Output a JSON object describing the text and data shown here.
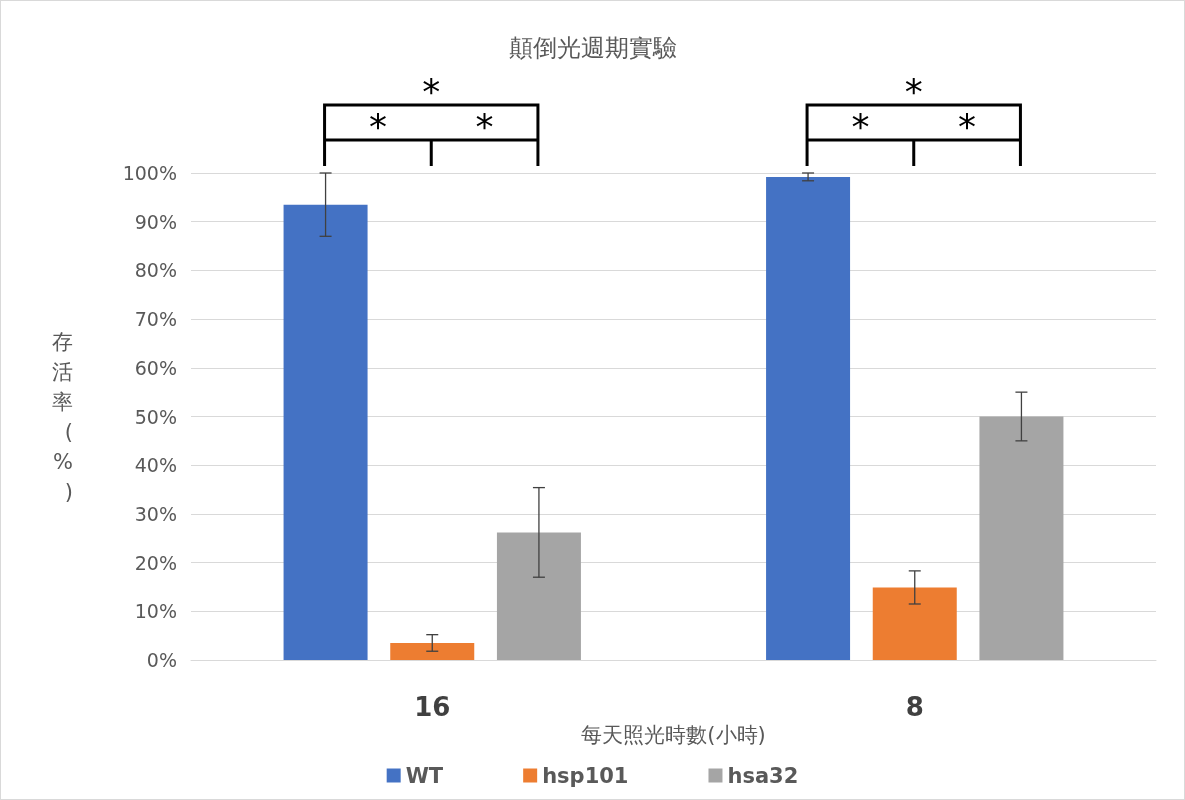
{
  "chart_data": {
    "type": "bar",
    "title": "顛倒光週期實驗",
    "xlabel": "每天照光時數(小時)",
    "ylabel": "存活率(%)",
    "categories": [
      "16",
      "8"
    ],
    "series": [
      {
        "name": "WT",
        "color": "#4472c4",
        "values": [
          93.5,
          99.2
        ],
        "errors": [
          6.5,
          0.8
        ]
      },
      {
        "name": "hsp101",
        "color": "#ed7d31",
        "values": [
          3.5,
          14.9
        ],
        "errors": [
          1.7,
          3.4
        ]
      },
      {
        "name": "hsa32",
        "color": "#a5a5a5",
        "values": [
          26.2,
          50
        ],
        "errors": [
          9.2,
          5
        ]
      }
    ],
    "ylim": [
      0,
      100
    ],
    "yticks": [
      {
        "value": 0,
        "label": "0%"
      },
      {
        "value": 10,
        "label": "10%"
      },
      {
        "value": 20,
        "label": "20%"
      },
      {
        "value": 30,
        "label": "30%"
      },
      {
        "value": 40,
        "label": "40%"
      },
      {
        "value": 50,
        "label": "50%"
      },
      {
        "value": 60,
        "label": "60%"
      },
      {
        "value": 70,
        "label": "70%"
      },
      {
        "value": 80,
        "label": "80%"
      },
      {
        "value": 90,
        "label": "90%"
      },
      {
        "value": 100,
        "label": "100%"
      }
    ],
    "grid": "y",
    "legend": "bottom",
    "annotations": [
      "*",
      "*",
      "*",
      "*",
      "*",
      "*"
    ]
  }
}
